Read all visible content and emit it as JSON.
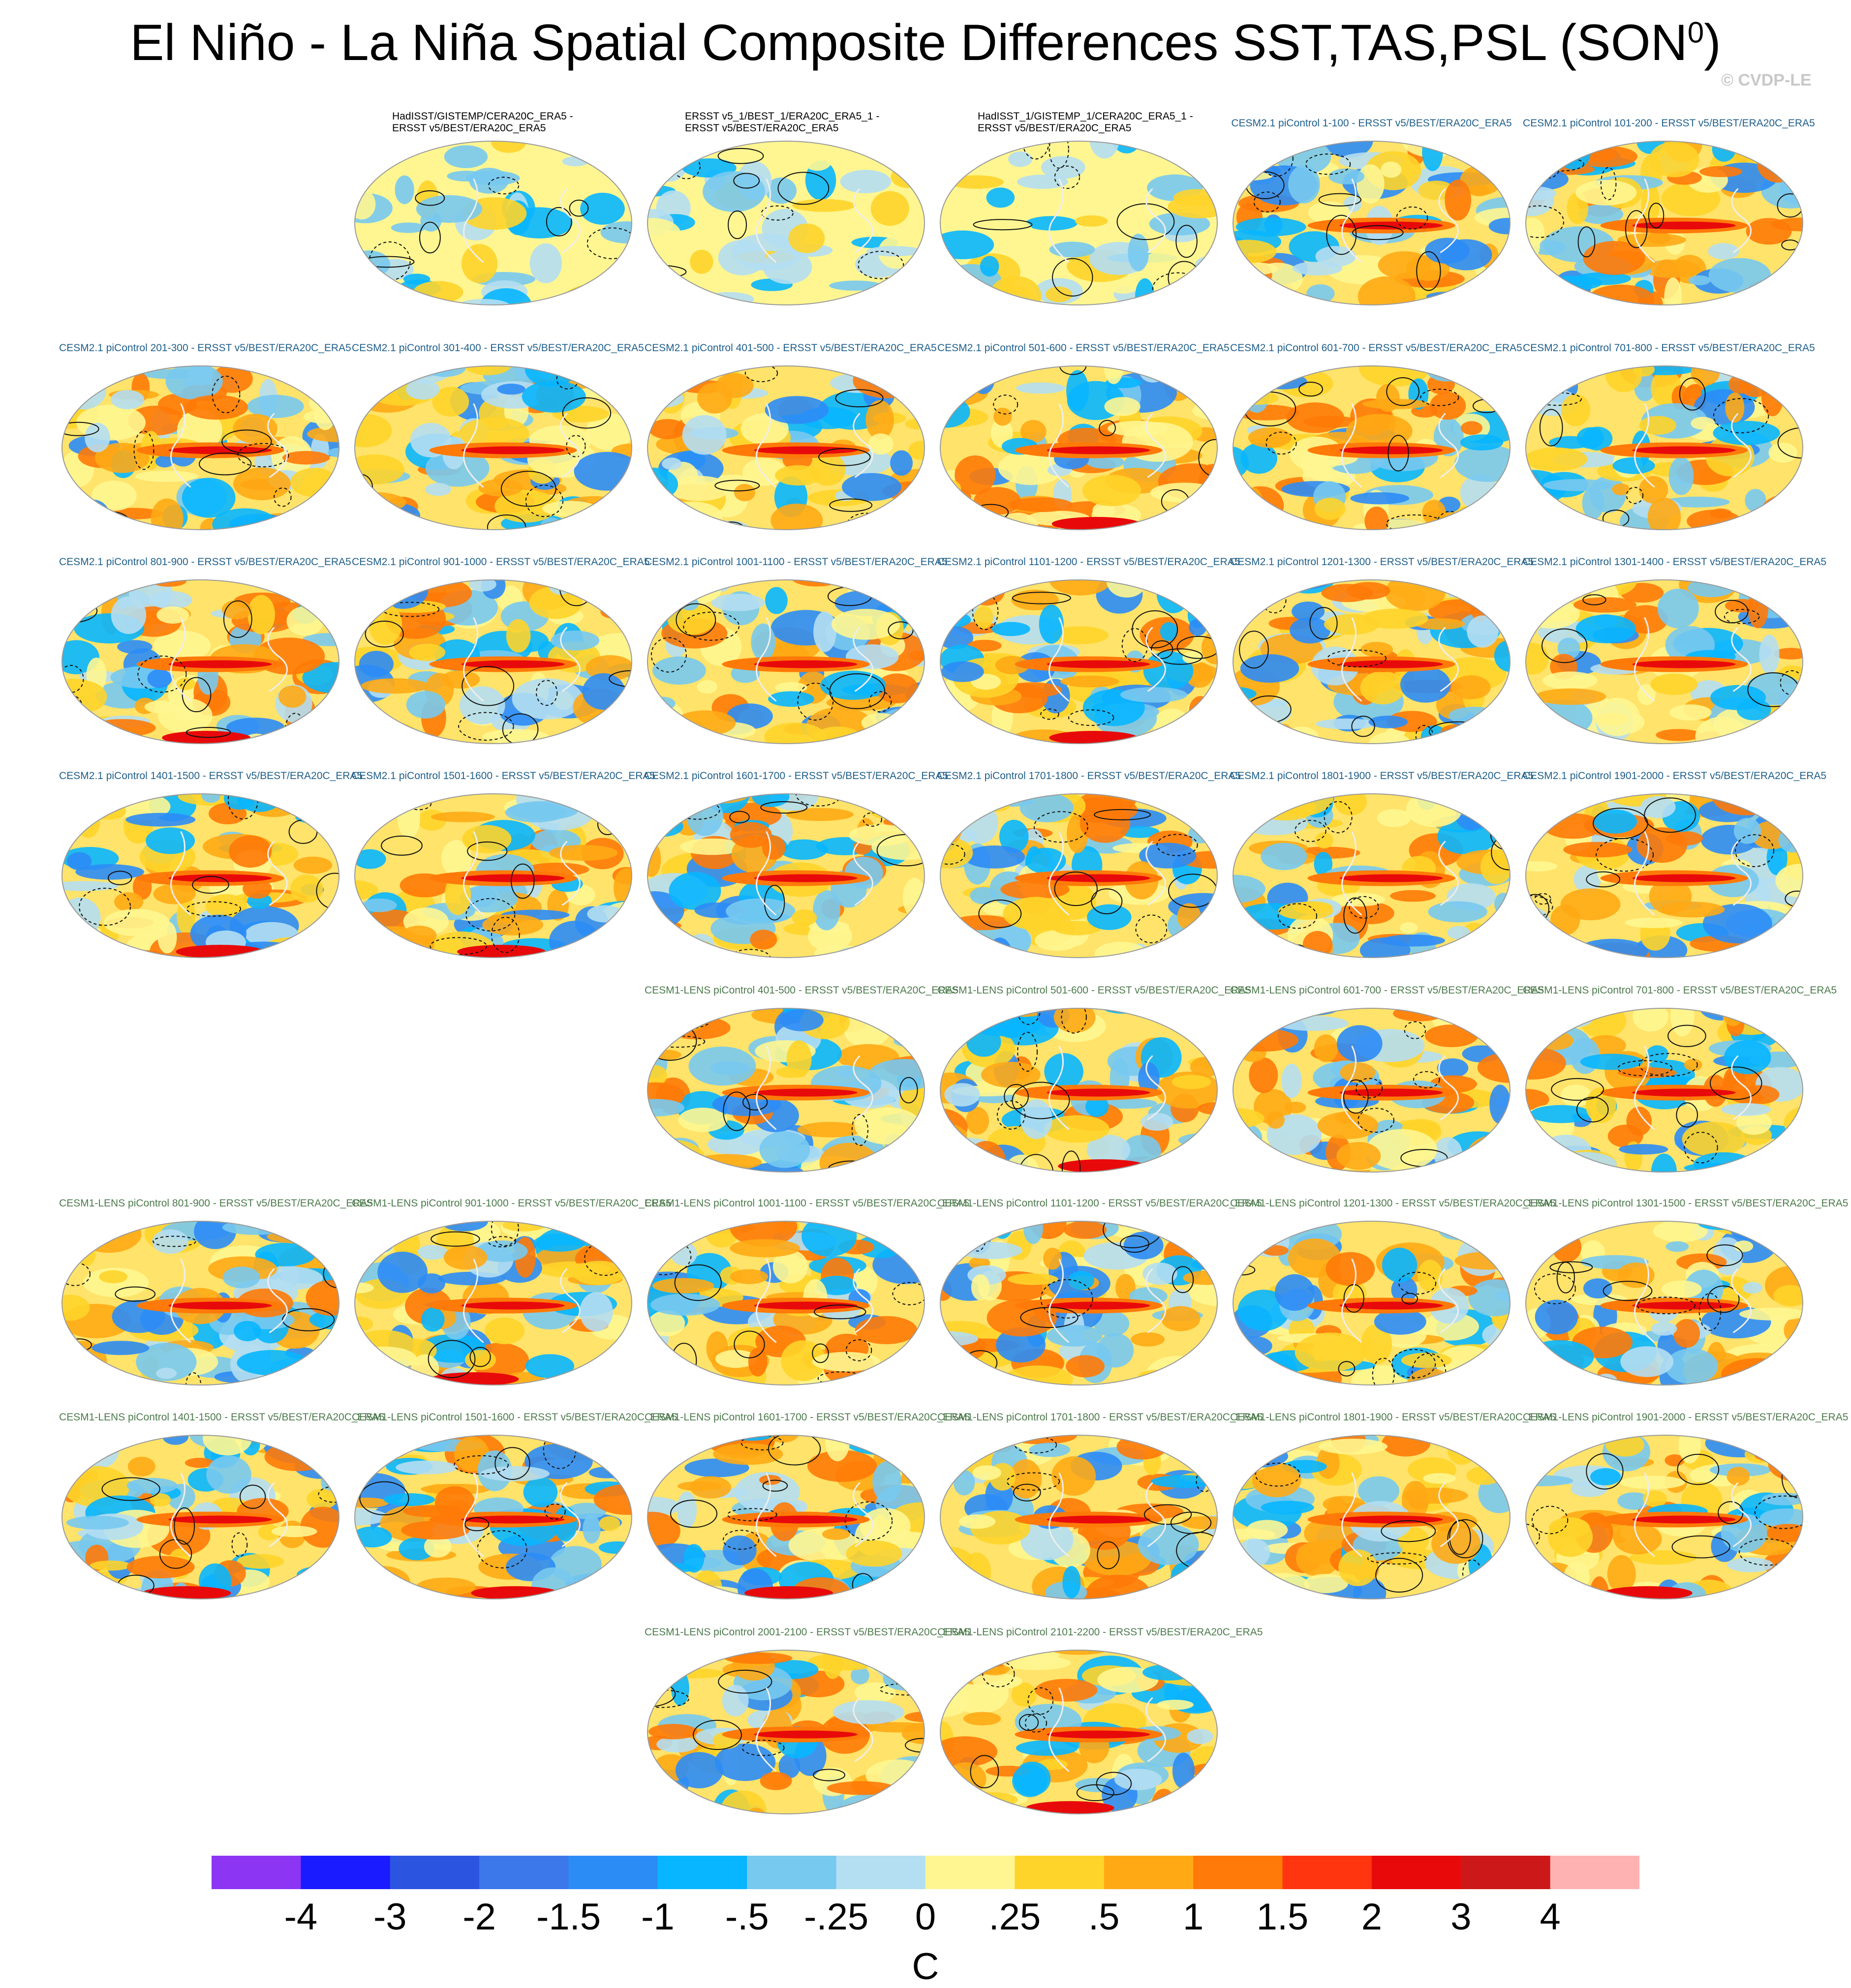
{
  "title": "El Niño - La Niña Spatial Composite Differences SST,TAS,PSL (SON",
  "title_sup": "0",
  "title_close": ")",
  "copyright": "© CVDP-LE",
  "obs_panels": [
    {
      "line1": "HadISST/GISTEMP/CERA20C_ERA5 -",
      "line2": "ERSST v5/BEST/ERA20C_ERA5"
    },
    {
      "line1": "ERSST v5_1/BEST_1/ERA20C_ERA5_1 -",
      "line2": "ERSST v5/BEST/ERA20C_ERA5"
    },
    {
      "line1": "HadISST_1/GISTEMP_1/CERA20C_ERA5_1 -",
      "line2": "ERSST v5/BEST/ERA20C_ERA5"
    }
  ],
  "cesm2_panels": [
    "CESM2.1 piControl 1-100 - ERSST v5/BEST/ERA20C_ERA5",
    "CESM2.1 piControl 101-200 - ERSST v5/BEST/ERA20C_ERA5",
    "CESM2.1 piControl 201-300 - ERSST v5/BEST/ERA20C_ERA5",
    "CESM2.1 piControl 301-400 - ERSST v5/BEST/ERA20C_ERA5",
    "CESM2.1 piControl 401-500 - ERSST v5/BEST/ERA20C_ERA5",
    "CESM2.1 piControl 501-600 - ERSST v5/BEST/ERA20C_ERA5",
    "CESM2.1 piControl 601-700 - ERSST v5/BEST/ERA20C_ERA5",
    "CESM2.1 piControl 701-800 - ERSST v5/BEST/ERA20C_ERA5",
    "CESM2.1 piControl 801-900 - ERSST v5/BEST/ERA20C_ERA5",
    "CESM2.1 piControl 901-1000 - ERSST v5/BEST/ERA20C_ERA5",
    "CESM2.1 piControl 1001-1100 - ERSST v5/BEST/ERA20C_ERA5",
    "CESM2.1 piControl 1101-1200 - ERSST v5/BEST/ERA20C_ERA5",
    "CESM2.1 piControl 1201-1300 - ERSST v5/BEST/ERA20C_ERA5",
    "CESM2.1 piControl 1301-1400 - ERSST v5/BEST/ERA20C_ERA5",
    "CESM2.1 piControl 1401-1500 - ERSST v5/BEST/ERA20C_ERA5",
    "CESM2.1 piControl 1501-1600 - ERSST v5/BEST/ERA20C_ERA5",
    "CESM2.1 piControl 1601-1700 - ERSST v5/BEST/ERA20C_ERA5",
    "CESM2.1 piControl 1701-1800 - ERSST v5/BEST/ERA20C_ERA5",
    "CESM2.1 piControl 1801-1900 - ERSST v5/BEST/ERA20C_ERA5",
    "CESM2.1 piControl 1901-2000 - ERSST v5/BEST/ERA20C_ERA5"
  ],
  "lens_panels": [
    "CESM1-LENS piControl 401-500 - ERSST v5/BEST/ERA20C_ERA5",
    "CESM1-LENS piControl 501-600 - ERSST v5/BEST/ERA20C_ERA5",
    "CESM1-LENS piControl 601-700 - ERSST v5/BEST/ERA20C_ERA5",
    "CESM1-LENS piControl 701-800 - ERSST v5/BEST/ERA20C_ERA5",
    "CESM1-LENS piControl 801-900 - ERSST v5/BEST/ERA20C_ERA5",
    "CESM1-LENS piControl 901-1000 - ERSST v5/BEST/ERA20C_ERA5",
    "CESM1-LENS piControl 1001-1100 - ERSST v5/BEST/ERA20C_ERA5",
    "CESM1-LENS piControl 1101-1200 - ERSST v5/BEST/ERA20C_ERA5",
    "CESM1-LENS piControl 1201-1300 - ERSST v5/BEST/ERA20C_ERA5",
    "CESM1-LENS piControl 1301-1500 - ERSST v5/BEST/ERA20C_ERA5",
    "CESM1-LENS piControl 1401-1500 - ERSST v5/BEST/ERA20C_ERA5",
    "CESM1-LENS piControl 1501-1600 - ERSST v5/BEST/ERA20C_ERA5",
    "CESM1-LENS piControl 1601-1700 - ERSST v5/BEST/ERA20C_ERA5",
    "CESM1-LENS piControl 1701-1800 - ERSST v5/BEST/ERA20C_ERA5",
    "CESM1-LENS piControl 1801-1900 - ERSST v5/BEST/ERA20C_ERA5",
    "CESM1-LENS piControl 1901-2000 - ERSST v5/BEST/ERA20C_ERA5",
    "CESM1-LENS piControl 2001-2100 - ERSST v5/BEST/ERA20C_ERA5",
    "CESM1-LENS piControl 2101-2200 - ERSST v5/BEST/ERA20C_ERA5"
  ],
  "chart_data": {
    "type": "heatmap",
    "projection": "global map panels (Robinson-like ellipse)",
    "colorbar": {
      "labels": [
        "-4",
        "-3",
        "-2",
        "-1.5",
        "-1",
        "-.5",
        "-.25",
        "0",
        ".25",
        ".5",
        "1",
        "1.5",
        "2",
        "3",
        "4"
      ],
      "colors": [
        "#8c35f2",
        "#1b1bff",
        "#2b55e0",
        "#3c78ea",
        "#2c8cf6",
        "#08b6ff",
        "#78c9f0",
        "#b4def2",
        "#fff691",
        "#ffd42a",
        "#ffaa15",
        "#ff7a08",
        "#ff3510",
        "#e80a0a",
        "#cc1818",
        "#ffb2b2"
      ],
      "units": "C"
    },
    "contours": "PSL difference: solid positive, dashed negative"
  }
}
